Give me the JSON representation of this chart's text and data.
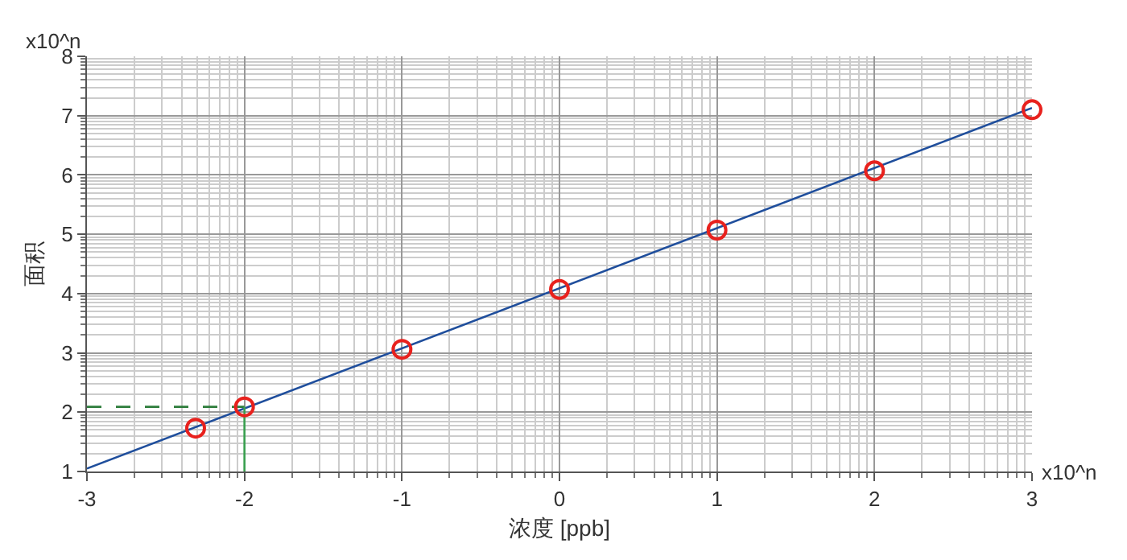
{
  "chart_data": {
    "type": "scatter",
    "xlabel": "浓度 [ppb]",
    "ylabel": "面积",
    "xlim": [
      -3,
      3
    ],
    "xticks": [
      -3,
      -2,
      -1,
      0,
      1,
      2,
      3
    ],
    "ylim": [
      1,
      8
    ],
    "yticks": [
      1,
      2,
      3,
      4,
      5,
      6,
      7,
      8
    ],
    "grid": true,
    "annotations": [
      "x10^n",
      "x10^n"
    ],
    "series": [
      {
        "type": "line",
        "color": "#1f4e9c",
        "x": [
          -3,
          3
        ],
        "values": [
          1.05,
          7.13
        ],
        "marker": "none",
        "line_style": "solid"
      },
      {
        "type": "line",
        "color": "#2e7d3c",
        "x": [
          -3,
          -2
        ],
        "values": [
          2.09,
          2.09
        ],
        "marker": "none",
        "line_style": "dashed"
      },
      {
        "type": "line",
        "color": "#3aa050",
        "x": [
          -2,
          -2
        ],
        "values": [
          2.09,
          1
        ],
        "marker": "none",
        "line_style": "solid"
      },
      {
        "color": "#e8211d",
        "x": [
          -2.31,
          -2,
          -1,
          0,
          1,
          2,
          3
        ],
        "values": [
          1.73,
          2.09,
          3.06,
          4.07,
          5.07,
          6.07,
          7.1
        ],
        "marker": "circle"
      }
    ]
  }
}
